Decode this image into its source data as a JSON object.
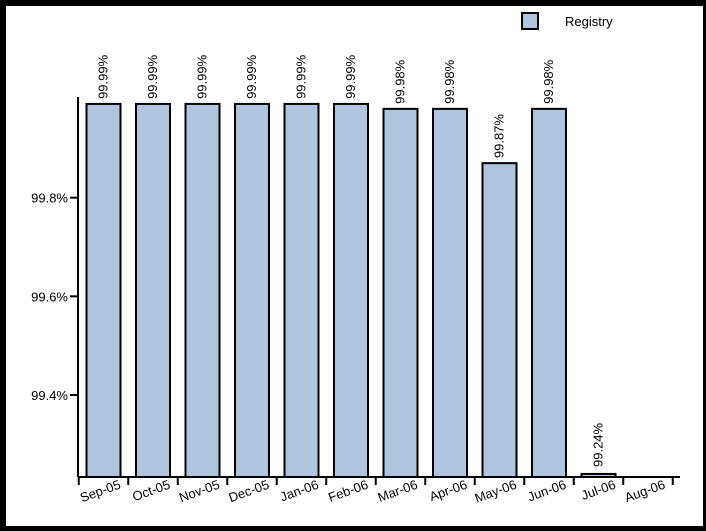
{
  "chart_data": {
    "type": "bar",
    "categories": [
      "Sep-05",
      "Oct-05",
      "Nov-05",
      "Dec-05",
      "Jan-06",
      "Feb-06",
      "Mar-06",
      "Apr-06",
      "May-06",
      "Jun-06",
      "Jul-06",
      "Aug-06"
    ],
    "series": [
      {
        "name": "Registry",
        "values": [
          99.99,
          99.99,
          99.99,
          99.99,
          99.99,
          99.99,
          99.98,
          99.98,
          99.87,
          99.98,
          99.24,
          null
        ],
        "labels": [
          "99.99%",
          "99.99%",
          "99.99%",
          "99.99%",
          "99.99%",
          "99.99%",
          "99.98%",
          "99.98%",
          "99.87%",
          "99.98%",
          "99.24%",
          ""
        ]
      }
    ],
    "yticks": [
      99.4,
      99.6,
      99.8
    ],
    "ytick_labels": [
      "99.4%",
      "99.6%",
      "99.8%"
    ],
    "ylim": [
      99.24,
      100.0
    ],
    "grid": false,
    "legend_position": "top-right",
    "colors": {
      "bar_fill": "#b0c4de",
      "bar_stroke": "#000000",
      "frame": "#000000",
      "background": "#ffffff"
    }
  }
}
